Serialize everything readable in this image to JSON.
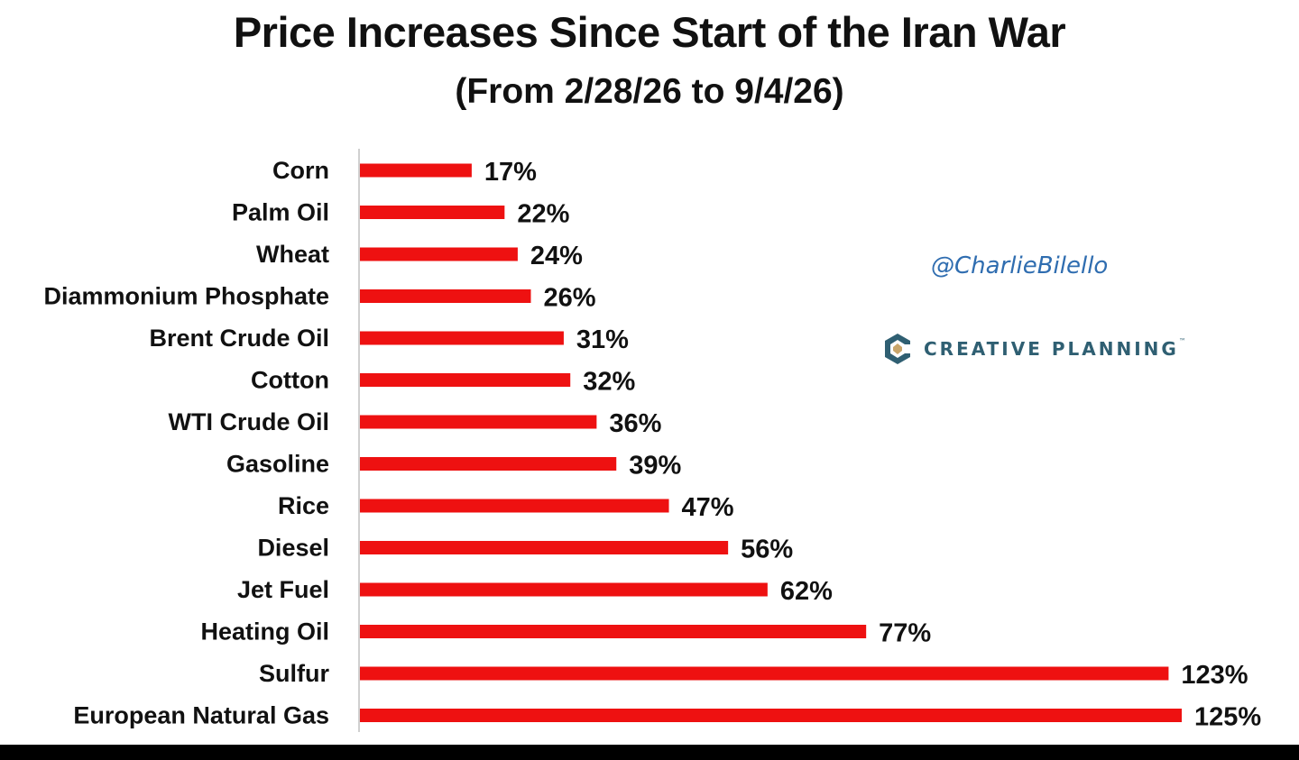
{
  "chart_data": {
    "type": "bar",
    "orientation": "horizontal",
    "title": "Price Increases Since Start of the Iran War",
    "subtitle": "(From 2/28/26 to 9/4/26)",
    "categories": [
      "Corn",
      "Palm Oil",
      "Wheat",
      "Diammonium Phosphate",
      "Brent Crude Oil",
      "Cotton",
      "WTI Crude Oil",
      "Gasoline",
      "Rice",
      "Diesel",
      "Jet Fuel",
      "Heating Oil",
      "Sulfur",
      "European Natural Gas"
    ],
    "values": [
      17,
      22,
      24,
      26,
      31,
      32,
      36,
      39,
      47,
      56,
      62,
      77,
      123,
      125
    ],
    "value_labels": [
      "17%",
      "22%",
      "24%",
      "26%",
      "31%",
      "32%",
      "36%",
      "39%",
      "47%",
      "56%",
      "62%",
      "77%",
      "123%",
      "125%"
    ],
    "xlim": [
      0,
      125
    ],
    "unit": "%",
    "grid": false,
    "legend": "none",
    "bar_color": "#ee1111"
  },
  "watermark": {
    "handle": "@CharlieBilello",
    "brand": "CREATIVE PLANNING",
    "brand_mark": "™"
  }
}
